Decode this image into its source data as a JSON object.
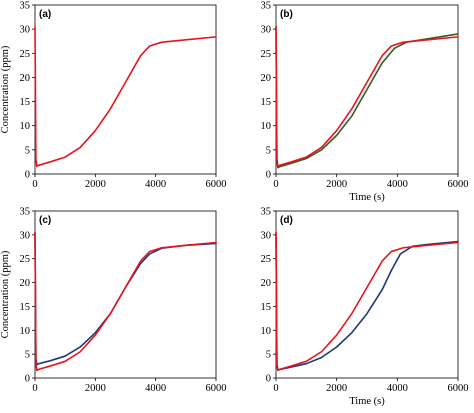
{
  "chart_data": [
    {
      "type": "line",
      "label": "(a)",
      "xlabel": "",
      "ylabel": "Concentration (ppm)",
      "xlim": [
        0,
        6000
      ],
      "ylim": [
        0,
        35
      ],
      "xticks": [
        0,
        2000,
        4000,
        6000
      ],
      "yticks": [
        0,
        5,
        10,
        15,
        20,
        25,
        30,
        35
      ],
      "series": [
        {
          "color": "#e8141c",
          "x": [
            0,
            30,
            60,
            120,
            500,
            1000,
            1500,
            2000,
            2500,
            3000,
            3500,
            3800,
            4200,
            5000,
            6000
          ],
          "y": [
            30.5,
            3.0,
            1.6,
            1.8,
            2.5,
            3.5,
            5.5,
            9.0,
            13.5,
            19.0,
            24.5,
            26.5,
            27.3,
            27.8,
            28.4
          ]
        }
      ]
    },
    {
      "type": "line",
      "label": "(b)",
      "xlabel": "Time (s)",
      "ylabel": "",
      "xlim": [
        0,
        6000
      ],
      "ylim": [
        0,
        35
      ],
      "xticks": [
        0,
        2000,
        4000,
        6000
      ],
      "yticks": [
        0,
        5,
        10,
        15,
        20,
        25,
        30,
        35
      ],
      "series": [
        {
          "color": "#3a5a2a",
          "x": [
            0,
            30,
            60,
            120,
            500,
            1000,
            1500,
            2000,
            2500,
            3000,
            3500,
            3900,
            4300,
            5000,
            6000
          ],
          "y": [
            30.5,
            3.0,
            1.3,
            1.5,
            2.2,
            3.2,
            5.0,
            8.0,
            12.0,
            17.5,
            23.0,
            26.0,
            27.3,
            28.0,
            29.0
          ]
        },
        {
          "color": "#e8141c",
          "x": [
            0,
            30,
            60,
            120,
            500,
            1000,
            1500,
            2000,
            2500,
            3000,
            3500,
            3800,
            4200,
            5000,
            6000
          ],
          "y": [
            30.5,
            3.0,
            1.6,
            1.8,
            2.5,
            3.5,
            5.5,
            9.0,
            13.5,
            19.0,
            24.5,
            26.5,
            27.3,
            27.8,
            28.4
          ]
        }
      ]
    },
    {
      "type": "line",
      "label": "(c)",
      "xlabel": "",
      "ylabel": "Concentration (ppm)",
      "xlim": [
        0,
        6000
      ],
      "ylim": [
        0,
        35
      ],
      "xticks": [
        0,
        2000,
        4000,
        6000
      ],
      "yticks": [
        0,
        5,
        10,
        15,
        20,
        25,
        30,
        35
      ],
      "series": [
        {
          "color": "#1e3a78",
          "x": [
            0,
            30,
            60,
            120,
            500,
            1000,
            1500,
            2000,
            2500,
            3000,
            3500,
            3800,
            4200,
            5000,
            6000
          ],
          "y": [
            30.5,
            4.0,
            2.8,
            3.0,
            3.6,
            4.6,
            6.5,
            9.5,
            13.5,
            19.0,
            24.0,
            26.0,
            27.2,
            27.8,
            28.2
          ]
        },
        {
          "color": "#e8141c",
          "x": [
            0,
            30,
            60,
            120,
            500,
            1000,
            1500,
            2000,
            2500,
            3000,
            3500,
            3800,
            4200,
            5000,
            6000
          ],
          "y": [
            30.5,
            3.0,
            1.6,
            1.8,
            2.5,
            3.5,
            5.5,
            9.0,
            13.5,
            19.0,
            24.5,
            26.5,
            27.3,
            27.8,
            28.4
          ]
        }
      ]
    },
    {
      "type": "line",
      "label": "(d)",
      "xlabel": "Time (s)",
      "ylabel": "",
      "xlim": [
        0,
        6000
      ],
      "ylim": [
        0,
        35
      ],
      "xticks": [
        0,
        2000,
        4000,
        6000
      ],
      "yticks": [
        0,
        5,
        10,
        15,
        20,
        25,
        30,
        35
      ],
      "series": [
        {
          "color": "#1e3a78",
          "x": [
            0,
            30,
            60,
            120,
            500,
            1000,
            1500,
            2000,
            2500,
            3000,
            3500,
            3800,
            4100,
            4500,
            5000,
            6000
          ],
          "y": [
            30.5,
            3.0,
            1.7,
            1.8,
            2.3,
            3.0,
            4.3,
            6.5,
            9.5,
            13.5,
            18.5,
            22.5,
            26.0,
            27.6,
            28.0,
            28.6
          ]
        },
        {
          "color": "#e8141c",
          "x": [
            0,
            30,
            60,
            120,
            500,
            1000,
            1500,
            2000,
            2500,
            3000,
            3500,
            3800,
            4200,
            5000,
            6000
          ],
          "y": [
            30.5,
            3.0,
            1.6,
            1.8,
            2.5,
            3.5,
            5.5,
            9.0,
            13.5,
            19.0,
            24.5,
            26.5,
            27.3,
            27.8,
            28.4
          ]
        }
      ]
    }
  ]
}
